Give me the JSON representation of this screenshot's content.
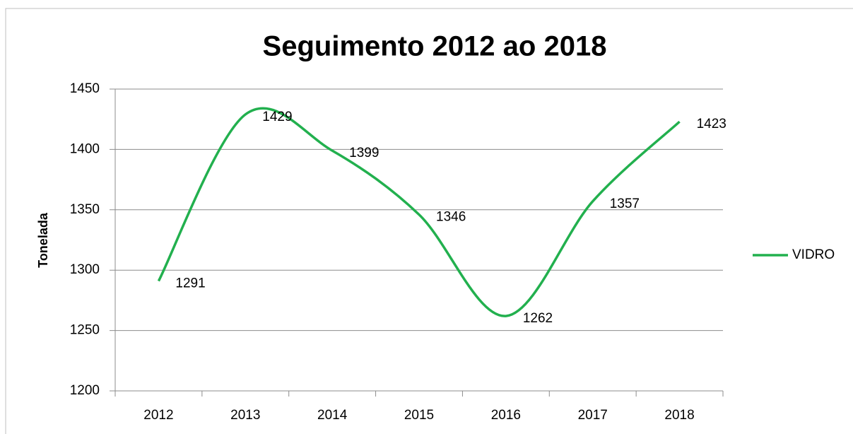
{
  "chart_data": {
    "type": "line",
    "title": "Seguimento 2012 ao 2018",
    "y_label": "Tonelada",
    "categories": [
      "2012",
      "2013",
      "2014",
      "2015",
      "2016",
      "2017",
      "2018"
    ],
    "series": [
      {
        "name": "VIDRO",
        "color": "#22b04e",
        "values": [
          1291,
          1429,
          1399,
          1346,
          1262,
          1357,
          1423
        ]
      }
    ],
    "ylim": [
      1200,
      1450
    ],
    "yticks": [
      1200,
      1250,
      1300,
      1350,
      1400,
      1450
    ],
    "grid": true,
    "smooth": true,
    "legend": "right"
  }
}
